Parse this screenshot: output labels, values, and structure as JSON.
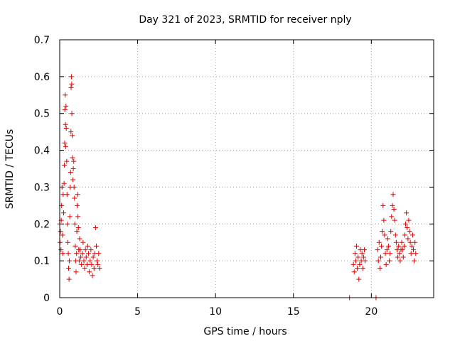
{
  "chart_data": {
    "type": "scatter",
    "title": "Day 321 of 2023, SRMTID for receiver nply",
    "xlabel": "GPS time / hours",
    "ylabel": "SRMTID / TECUs",
    "xlim": [
      0,
      24
    ],
    "ylim": [
      0,
      0.7
    ],
    "xticks": [
      0,
      5,
      10,
      15,
      20
    ],
    "xtick_labels": [
      "0",
      "5",
      "10",
      "15",
      "20"
    ],
    "yticks": [
      0,
      0.1,
      0.2,
      0.3,
      0.4,
      0.5,
      0.6,
      0.7
    ],
    "ytick_labels": [
      "0",
      "0.1",
      "0.2",
      "0.3",
      "0.4",
      "0.5",
      "0.6",
      "0.7"
    ],
    "grid": true,
    "marker": "plus",
    "color": "#e00000",
    "series": [
      {
        "name": "SRMTID",
        "points": [
          [
            0.0,
            0.2
          ],
          [
            0.02,
            0.15
          ],
          [
            0.05,
            0.18
          ],
          [
            0.08,
            0.13
          ],
          [
            0.1,
            0.21
          ],
          [
            0.12,
            0.25
          ],
          [
            0.15,
            0.3
          ],
          [
            0.18,
            0.17
          ],
          [
            0.2,
            0.12
          ],
          [
            0.22,
            0.28
          ],
          [
            0.25,
            0.23
          ],
          [
            0.28,
            0.31
          ],
          [
            0.3,
            0.36
          ],
          [
            0.32,
            0.42
          ],
          [
            0.33,
            0.51
          ],
          [
            0.35,
            0.55
          ],
          [
            0.37,
            0.47
          ],
          [
            0.38,
            0.41
          ],
          [
            0.4,
            0.52
          ],
          [
            0.42,
            0.46
          ],
          [
            0.45,
            0.37
          ],
          [
            0.47,
            0.28
          ],
          [
            0.5,
            0.2
          ],
          [
            0.52,
            0.15
          ],
          [
            0.55,
            0.12
          ],
          [
            0.57,
            0.08
          ],
          [
            0.6,
            0.05
          ],
          [
            0.62,
            0.1
          ],
          [
            0.65,
            0.22
          ],
          [
            0.67,
            0.3
          ],
          [
            0.7,
            0.34
          ],
          [
            0.72,
            0.45
          ],
          [
            0.73,
            0.57
          ],
          [
            0.75,
            0.6
          ],
          [
            0.77,
            0.58
          ],
          [
            0.78,
            0.5
          ],
          [
            0.8,
            0.44
          ],
          [
            0.82,
            0.38
          ],
          [
            0.85,
            0.32
          ],
          [
            0.87,
            0.35
          ],
          [
            0.9,
            0.37
          ],
          [
            0.92,
            0.3
          ],
          [
            0.95,
            0.27
          ],
          [
            0.97,
            0.2
          ],
          [
            1.0,
            0.14
          ],
          [
            1.02,
            0.1
          ],
          [
            1.05,
            0.07
          ],
          [
            1.08,
            0.12
          ],
          [
            1.1,
            0.18
          ],
          [
            1.12,
            0.25
          ],
          [
            1.15,
            0.28
          ],
          [
            1.17,
            0.22
          ],
          [
            1.2,
            0.19
          ],
          [
            1.22,
            0.13
          ],
          [
            1.25,
            0.1
          ],
          [
            1.28,
            0.16
          ],
          [
            1.3,
            0.13
          ],
          [
            1.35,
            0.11
          ],
          [
            1.4,
            0.09
          ],
          [
            1.45,
            0.12
          ],
          [
            1.5,
            0.15
          ],
          [
            1.55,
            0.1
          ],
          [
            1.6,
            0.08
          ],
          [
            1.65,
            0.13
          ],
          [
            1.7,
            0.11
          ],
          [
            1.75,
            0.09
          ],
          [
            1.8,
            0.14
          ],
          [
            1.85,
            0.12
          ],
          [
            1.9,
            0.07
          ],
          [
            1.95,
            0.1
          ],
          [
            2.0,
            0.13
          ],
          [
            2.05,
            0.09
          ],
          [
            2.1,
            0.06
          ],
          [
            2.15,
            0.11
          ],
          [
            2.2,
            0.08
          ],
          [
            2.25,
            0.12
          ],
          [
            2.3,
            0.19
          ],
          [
            2.35,
            0.14
          ],
          [
            2.4,
            0.1
          ],
          [
            2.45,
            0.09
          ],
          [
            2.5,
            0.12
          ],
          [
            2.55,
            0.08
          ],
          [
            18.6,
            0.0
          ],
          [
            18.85,
            0.09
          ],
          [
            18.9,
            0.07
          ],
          [
            18.95,
            0.12
          ],
          [
            19.0,
            0.1
          ],
          [
            19.05,
            0.14
          ],
          [
            19.1,
            0.08
          ],
          [
            19.15,
            0.11
          ],
          [
            19.2,
            0.05
          ],
          [
            19.25,
            0.09
          ],
          [
            19.3,
            0.13
          ],
          [
            19.35,
            0.1
          ],
          [
            19.4,
            0.12
          ],
          [
            19.45,
            0.08
          ],
          [
            19.5,
            0.11
          ],
          [
            19.55,
            0.13
          ],
          [
            19.6,
            0.1
          ],
          [
            20.3,
            0.0
          ],
          [
            20.4,
            0.13
          ],
          [
            20.45,
            0.1
          ],
          [
            20.5,
            0.15
          ],
          [
            20.55,
            0.08
          ],
          [
            20.6,
            0.11
          ],
          [
            20.65,
            0.14
          ],
          [
            20.7,
            0.18
          ],
          [
            20.75,
            0.25
          ],
          [
            20.8,
            0.21
          ],
          [
            20.85,
            0.17
          ],
          [
            20.9,
            0.12
          ],
          [
            20.95,
            0.09
          ],
          [
            21.0,
            0.13
          ],
          [
            21.05,
            0.16
          ],
          [
            21.1,
            0.14
          ],
          [
            21.15,
            0.1
          ],
          [
            21.2,
            0.12
          ],
          [
            21.25,
            0.18
          ],
          [
            21.3,
            0.22
          ],
          [
            21.35,
            0.25
          ],
          [
            21.4,
            0.28
          ],
          [
            21.45,
            0.24
          ],
          [
            21.5,
            0.21
          ],
          [
            21.55,
            0.17
          ],
          [
            21.6,
            0.15
          ],
          [
            21.65,
            0.13
          ],
          [
            21.7,
            0.11
          ],
          [
            21.75,
            0.14
          ],
          [
            21.8,
            0.12
          ],
          [
            21.85,
            0.1
          ],
          [
            21.9,
            0.13
          ],
          [
            21.95,
            0.15
          ],
          [
            22.0,
            0.13
          ],
          [
            22.05,
            0.11
          ],
          [
            22.1,
            0.14
          ],
          [
            22.15,
            0.17
          ],
          [
            22.2,
            0.2
          ],
          [
            22.25,
            0.23
          ],
          [
            22.3,
            0.19
          ],
          [
            22.35,
            0.16
          ],
          [
            22.4,
            0.21
          ],
          [
            22.45,
            0.18
          ],
          [
            22.5,
            0.15
          ],
          [
            22.55,
            0.12
          ],
          [
            22.6,
            0.14
          ],
          [
            22.65,
            0.17
          ],
          [
            22.7,
            0.13
          ],
          [
            22.75,
            0.1
          ],
          [
            22.8,
            0.15
          ],
          [
            22.85,
            0.12
          ]
        ]
      }
    ]
  }
}
